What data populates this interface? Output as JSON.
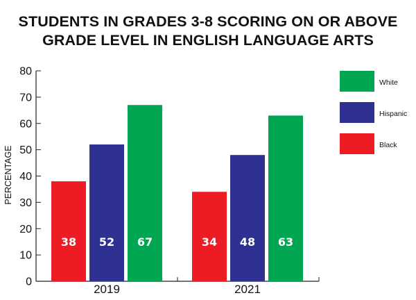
{
  "chart_data": {
    "type": "bar",
    "title": [
      "STUDENTS IN GRADES 3-8 SCORING ON OR ABOVE",
      "GRADE LEVEL IN ENGLISH LANGUAGE ARTS"
    ],
    "ylabel": "PERCENTAGE",
    "xlabel": "",
    "ylim": [
      0,
      80
    ],
    "yticks": [
      0,
      10,
      20,
      30,
      40,
      50,
      60,
      70,
      80
    ],
    "categories": [
      "2019",
      "2021"
    ],
    "series": [
      {
        "name": "Black",
        "color": "#ED1C24",
        "values": [
          38,
          34
        ]
      },
      {
        "name": "Hispanic",
        "color": "#2E3192",
        "values": [
          52,
          48
        ]
      },
      {
        "name": "White",
        "color": "#00A651",
        "values": [
          67,
          63
        ]
      }
    ],
    "legend_order": [
      "White",
      "Hispanic",
      "Black"
    ],
    "legend_placement": "right",
    "data_labels": true,
    "grid": false
  }
}
